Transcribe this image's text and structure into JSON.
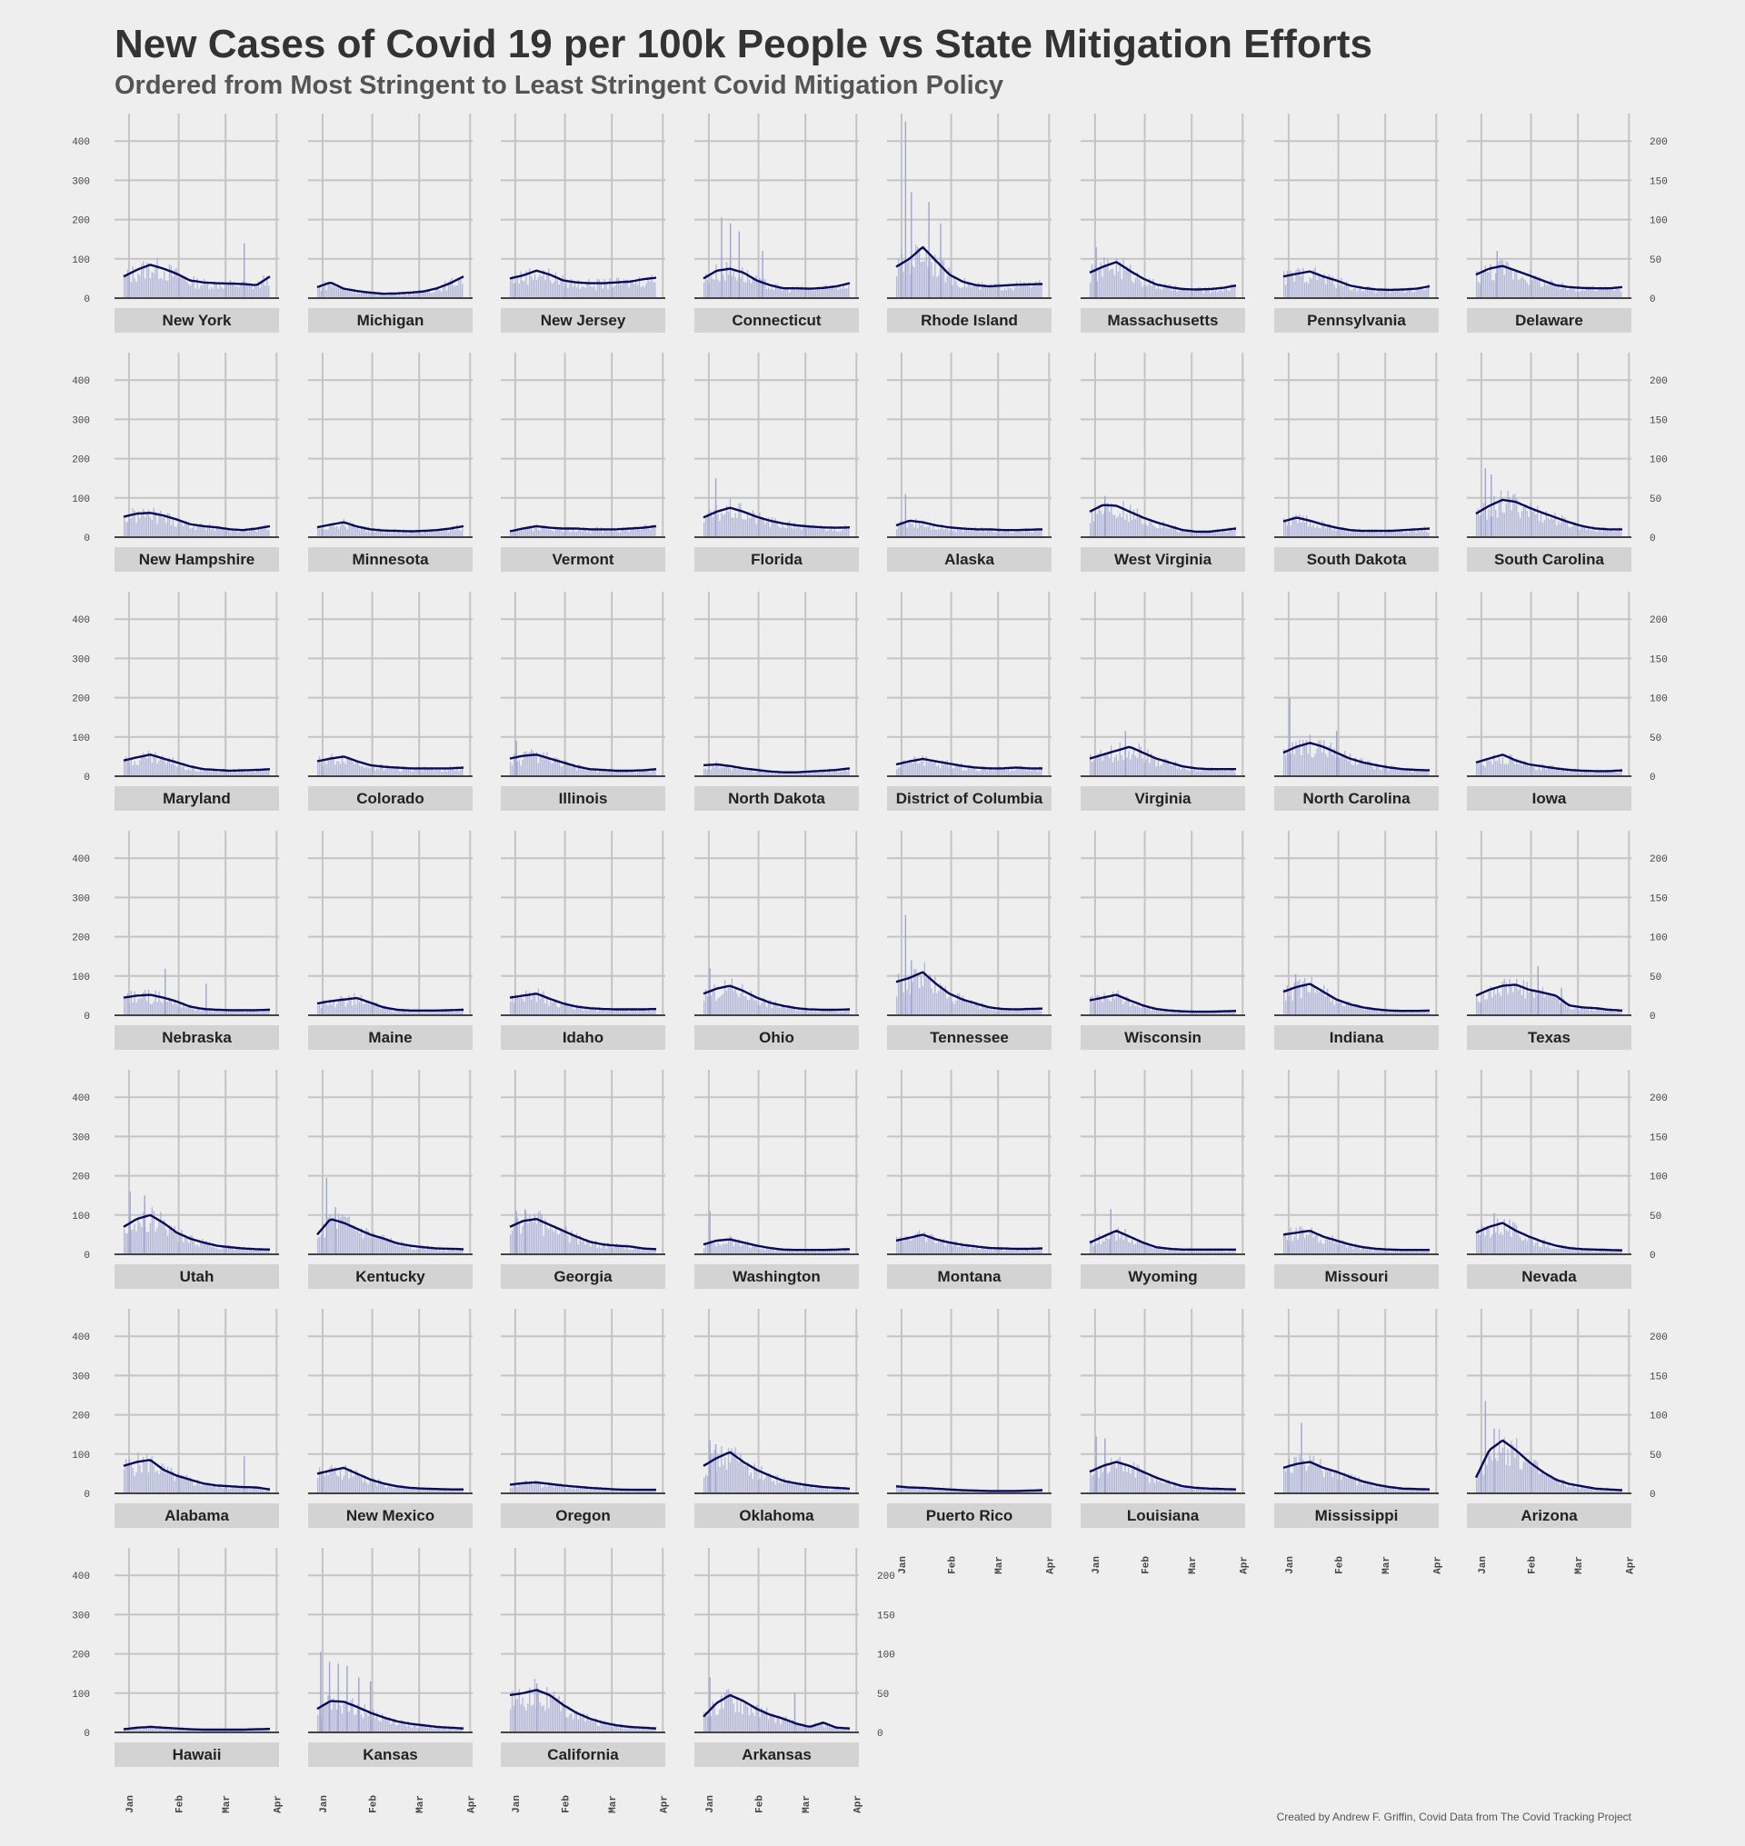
{
  "title": "New Cases of Covid 19 per 100k People vs State Mitigation Efforts",
  "subtitle": "Ordered from Most Stringent to Least Stringent Covid Mitigation Policy",
  "caption": "Created by Andrew F. Griffin, Covid Data from The Covid Tracking Project",
  "colors": {
    "background": "#eeeeee",
    "grid": "#c4c4c4",
    "strip": "#d3d3d3",
    "bars": "#9ea3d2",
    "line": "#0a0a5c",
    "baseline": "#444444"
  },
  "chart_data": {
    "type": "bar",
    "layout": "faceted small multiples, 8 columns",
    "x_ticks": [
      "Jan",
      "Feb",
      "Mar",
      "Apr"
    ],
    "left_y_ticks": [
      0,
      100,
      200,
      300,
      400
    ],
    "right_y_ticks": [
      0,
      50,
      100,
      150,
      200
    ],
    "ylim": [
      0,
      470
    ],
    "grid": true,
    "series_description": [
      "daily new cases per 100k (bars)",
      "7-day average (line)"
    ],
    "panels": [
      {
        "state": "New York",
        "avg": [
          55,
          72,
          85,
          75,
          62,
          45,
          40,
          38,
          37,
          36,
          33,
          55
        ],
        "spikes": [
          [
            0.82,
            140
          ]
        ]
      },
      {
        "state": "Michigan",
        "avg": [
          28,
          40,
          24,
          18,
          14,
          11,
          12,
          14,
          17,
          25,
          38,
          55
        ],
        "spikes": []
      },
      {
        "state": "New Jersey",
        "avg": [
          50,
          58,
          70,
          60,
          45,
          40,
          38,
          38,
          40,
          42,
          48,
          52
        ],
        "spikes": []
      },
      {
        "state": "Connecticut",
        "avg": [
          50,
          70,
          75,
          65,
          45,
          33,
          25,
          25,
          24,
          26,
          30,
          38
        ],
        "spikes": [
          [
            0.12,
            205
          ],
          [
            0.18,
            190
          ],
          [
            0.24,
            170
          ],
          [
            0.4,
            120
          ]
        ]
      },
      {
        "state": "Rhode Island",
        "avg": [
          80,
          100,
          130,
          95,
          60,
          42,
          33,
          30,
          32,
          34,
          35,
          36
        ],
        "spikes": [
          [
            0.06,
            450
          ],
          [
            0.1,
            270
          ],
          [
            0.22,
            245
          ],
          [
            0.3,
            190
          ]
        ]
      },
      {
        "state": "Massachusetts",
        "avg": [
          65,
          80,
          92,
          70,
          50,
          35,
          28,
          23,
          22,
          23,
          26,
          32
        ],
        "spikes": [
          [
            0.04,
            130
          ]
        ]
      },
      {
        "state": "Pennsylvania",
        "avg": [
          55,
          62,
          68,
          55,
          45,
          32,
          26,
          22,
          21,
          22,
          24,
          30
        ],
        "spikes": []
      },
      {
        "state": "Delaware",
        "avg": [
          60,
          75,
          82,
          70,
          58,
          45,
          33,
          28,
          26,
          25,
          25,
          28
        ],
        "spikes": [
          [
            0.14,
            120
          ]
        ]
      },
      {
        "state": "New Hampshire",
        "avg": [
          52,
          60,
          62,
          55,
          45,
          33,
          28,
          25,
          20,
          18,
          22,
          28
        ],
        "spikes": []
      },
      {
        "state": "Minnesota",
        "avg": [
          25,
          32,
          38,
          27,
          20,
          17,
          16,
          15,
          16,
          18,
          22,
          28
        ],
        "spikes": []
      },
      {
        "state": "Vermont",
        "avg": [
          15,
          22,
          28,
          24,
          22,
          22,
          20,
          20,
          20,
          22,
          24,
          28
        ],
        "spikes": []
      },
      {
        "state": "Florida",
        "avg": [
          50,
          65,
          75,
          65,
          52,
          42,
          35,
          30,
          27,
          25,
          24,
          25
        ],
        "spikes": [
          [
            0.08,
            150
          ]
        ]
      },
      {
        "state": "Alaska",
        "avg": [
          30,
          42,
          38,
          30,
          25,
          22,
          20,
          20,
          18,
          18,
          19,
          20
        ],
        "spikes": [
          [
            0.06,
            110
          ]
        ]
      },
      {
        "state": "West Virginia",
        "avg": [
          65,
          82,
          80,
          65,
          50,
          38,
          28,
          18,
          14,
          14,
          18,
          22
        ],
        "spikes": [
          [
            0.1,
            105
          ]
        ]
      },
      {
        "state": "South Dakota",
        "avg": [
          40,
          50,
          42,
          32,
          24,
          18,
          16,
          16,
          16,
          18,
          20,
          22
        ],
        "spikes": []
      },
      {
        "state": "South Carolina",
        "avg": [
          60,
          80,
          95,
          90,
          75,
          62,
          50,
          38,
          28,
          22,
          20,
          20
        ],
        "spikes": [
          [
            0.06,
            175
          ],
          [
            0.1,
            160
          ]
        ]
      },
      {
        "state": "Maryland",
        "avg": [
          40,
          48,
          55,
          45,
          35,
          25,
          18,
          16,
          14,
          15,
          16,
          18
        ],
        "spikes": []
      },
      {
        "state": "Colorado",
        "avg": [
          38,
          45,
          50,
          38,
          28,
          24,
          22,
          20,
          20,
          20,
          20,
          22
        ],
        "spikes": []
      },
      {
        "state": "Illinois",
        "avg": [
          45,
          52,
          55,
          45,
          35,
          25,
          18,
          16,
          14,
          14,
          15,
          18
        ],
        "spikes": [
          [
            0.04,
            90
          ]
        ]
      },
      {
        "state": "North Dakota",
        "avg": [
          28,
          30,
          26,
          20,
          16,
          12,
          10,
          10,
          12,
          14,
          16,
          20
        ],
        "spikes": []
      },
      {
        "state": "District of Columbia",
        "avg": [
          30,
          38,
          44,
          38,
          32,
          26,
          22,
          20,
          20,
          22,
          20,
          20
        ],
        "spikes": []
      },
      {
        "state": "Virginia",
        "avg": [
          45,
          55,
          65,
          75,
          60,
          45,
          35,
          25,
          20,
          18,
          18,
          18
        ],
        "spikes": [
          [
            0.24,
            115
          ]
        ]
      },
      {
        "state": "North Carolina",
        "avg": [
          60,
          75,
          85,
          75,
          60,
          45,
          35,
          28,
          22,
          18,
          16,
          15
        ],
        "spikes": [
          [
            0.04,
            200
          ],
          [
            0.36,
            115
          ]
        ]
      },
      {
        "state": "Iowa",
        "avg": [
          35,
          45,
          55,
          40,
          30,
          25,
          20,
          16,
          14,
          13,
          13,
          15
        ],
        "spikes": []
      },
      {
        "state": "Nebraska",
        "avg": [
          45,
          50,
          52,
          45,
          35,
          22,
          16,
          14,
          13,
          13,
          13,
          14
        ],
        "spikes": [
          [
            0.28,
            118
          ],
          [
            0.56,
            80
          ]
        ]
      },
      {
        "state": "Maine",
        "avg": [
          30,
          36,
          40,
          44,
          32,
          20,
          14,
          12,
          12,
          12,
          13,
          14
        ],
        "spikes": []
      },
      {
        "state": "Idaho",
        "avg": [
          45,
          50,
          55,
          42,
          30,
          22,
          18,
          16,
          15,
          15,
          15,
          16
        ],
        "spikes": []
      },
      {
        "state": "Ohio",
        "avg": [
          55,
          68,
          75,
          62,
          45,
          32,
          24,
          18,
          15,
          14,
          14,
          15
        ],
        "spikes": [
          [
            0.04,
            120
          ]
        ]
      },
      {
        "state": "Tennessee",
        "avg": [
          85,
          95,
          110,
          80,
          55,
          40,
          30,
          20,
          16,
          15,
          16,
          17
        ],
        "spikes": [
          [
            0.06,
            255
          ],
          [
            0.1,
            140
          ]
        ]
      },
      {
        "state": "Wisconsin",
        "avg": [
          38,
          45,
          52,
          38,
          25,
          16,
          12,
          10,
          9,
          9,
          10,
          11
        ],
        "spikes": []
      },
      {
        "state": "Indiana",
        "avg": [
          60,
          72,
          80,
          60,
          40,
          28,
          20,
          15,
          12,
          11,
          11,
          12
        ],
        "spikes": [
          [
            0.08,
            105
          ]
        ]
      },
      {
        "state": "Texas",
        "avg": [
          50,
          65,
          75,
          78,
          65,
          58,
          50,
          25,
          20,
          18,
          14,
          12
        ],
        "spikes": [
          [
            0.42,
            125
          ],
          [
            0.58,
            70
          ]
        ]
      },
      {
        "state": "Utah",
        "avg": [
          70,
          90,
          100,
          80,
          55,
          40,
          30,
          22,
          18,
          15,
          13,
          12
        ],
        "spikes": [
          [
            0.04,
            160
          ],
          [
            0.14,
            150
          ]
        ]
      },
      {
        "state": "Kentucky",
        "avg": [
          50,
          90,
          80,
          65,
          50,
          40,
          28,
          22,
          18,
          15,
          14,
          13
        ],
        "spikes": [
          [
            0.06,
            195
          ],
          [
            0.12,
            120
          ]
        ]
      },
      {
        "state": "Georgia",
        "avg": [
          70,
          85,
          90,
          75,
          60,
          45,
          32,
          25,
          22,
          20,
          15,
          13
        ],
        "spikes": [
          [
            0.04,
            110
          ],
          [
            0.1,
            115
          ]
        ]
      },
      {
        "state": "Washington",
        "avg": [
          25,
          35,
          38,
          30,
          22,
          16,
          12,
          11,
          11,
          11,
          12,
          13
        ],
        "spikes": [
          [
            0.04,
            110
          ]
        ]
      },
      {
        "state": "Montana",
        "avg": [
          35,
          42,
          50,
          38,
          30,
          24,
          20,
          16,
          15,
          14,
          14,
          15
        ],
        "spikes": []
      },
      {
        "state": "Wyoming",
        "avg": [
          30,
          45,
          60,
          45,
          30,
          18,
          14,
          12,
          12,
          12,
          12,
          12
        ],
        "spikes": [
          [
            0.14,
            115
          ]
        ]
      },
      {
        "state": "Missouri",
        "avg": [
          50,
          55,
          60,
          45,
          35,
          25,
          18,
          14,
          12,
          11,
          11,
          11
        ],
        "spikes": []
      },
      {
        "state": "Nevada",
        "avg": [
          55,
          70,
          80,
          60,
          45,
          32,
          22,
          16,
          13,
          12,
          11,
          10
        ],
        "spikes": [
          [
            0.12,
            105
          ]
        ]
      },
      {
        "state": "Alabama",
        "avg": [
          70,
          80,
          85,
          60,
          45,
          35,
          25,
          20,
          18,
          16,
          15,
          10
        ],
        "spikes": [
          [
            0.82,
            95
          ]
        ]
      },
      {
        "state": "New Mexico",
        "avg": [
          50,
          58,
          65,
          50,
          35,
          25,
          18,
          14,
          12,
          11,
          10,
          10
        ],
        "spikes": []
      },
      {
        "state": "Oregon",
        "avg": [
          22,
          26,
          28,
          24,
          20,
          17,
          14,
          12,
          10,
          9,
          9,
          9
        ],
        "spikes": []
      },
      {
        "state": "Oklahoma",
        "avg": [
          70,
          90,
          105,
          80,
          60,
          45,
          32,
          25,
          20,
          16,
          14,
          12
        ],
        "spikes": [
          [
            0.04,
            135
          ],
          [
            0.08,
            125
          ]
        ]
      },
      {
        "state": "Puerto Rico",
        "avg": [
          18,
          15,
          14,
          12,
          10,
          8,
          7,
          6,
          6,
          6,
          7,
          8
        ],
        "spikes": []
      },
      {
        "state": "Louisiana",
        "avg": [
          55,
          70,
          80,
          70,
          55,
          40,
          28,
          18,
          14,
          12,
          11,
          10
        ],
        "spikes": [
          [
            0.04,
            145
          ],
          [
            0.1,
            140
          ]
        ]
      },
      {
        "state": "Mississippi",
        "avg": [
          65,
          75,
          80,
          65,
          55,
          42,
          30,
          22,
          16,
          12,
          11,
          10
        ],
        "spikes": [
          [
            0.12,
            180
          ]
        ]
      },
      {
        "state": "Arizona",
        "avg": [
          40,
          110,
          135,
          110,
          80,
          55,
          35,
          24,
          18,
          12,
          10,
          8
        ],
        "spikes": [
          [
            0.06,
            235
          ],
          [
            0.12,
            165
          ]
        ]
      },
      {
        "state": "Hawaii",
        "avg": [
          8,
          12,
          14,
          12,
          10,
          8,
          7,
          7,
          7,
          7,
          8,
          9
        ],
        "spikes": []
      },
      {
        "state": "Kansas",
        "avg": [
          60,
          80,
          78,
          65,
          50,
          38,
          28,
          22,
          18,
          14,
          12,
          10
        ],
        "spikes": [
          [
            0.02,
            205
          ],
          [
            0.08,
            180
          ],
          [
            0.14,
            175
          ],
          [
            0.2,
            170
          ],
          [
            0.28,
            140
          ],
          [
            0.36,
            130
          ]
        ]
      },
      {
        "state": "California",
        "avg": [
          95,
          100,
          108,
          95,
          70,
          50,
          35,
          25,
          18,
          14,
          12,
          10
        ],
        "spikes": [
          [
            0.18,
            125
          ]
        ]
      },
      {
        "state": "Arkansas",
        "avg": [
          40,
          75,
          95,
          80,
          60,
          45,
          35,
          22,
          14,
          25,
          12,
          10
        ],
        "spikes": [
          [
            0.04,
            140
          ],
          [
            0.62,
            100
          ]
        ]
      }
    ]
  }
}
